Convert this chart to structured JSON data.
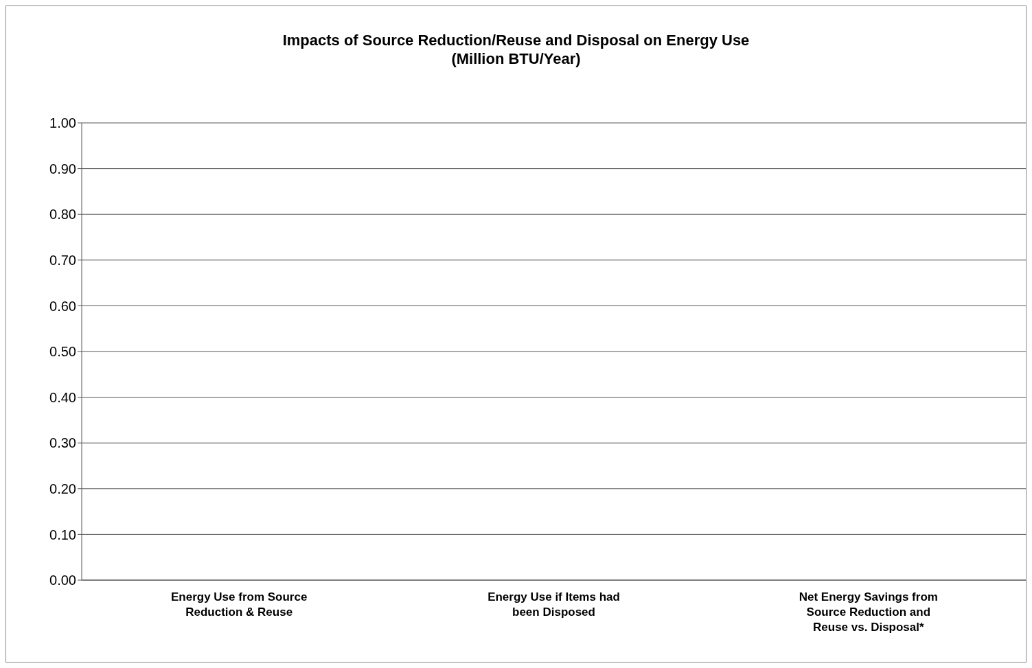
{
  "chart_data": {
    "type": "bar",
    "title": "Impacts of Source Reduction/Reuse and Disposal on Energy Use\n(Million BTU/Year)",
    "categories": [
      "Energy Use from Source Reduction & Reuse",
      "Energy Use if Items had been Disposed",
      "Net Energy Savings from Source Reduction and Reuse vs. Disposal*"
    ],
    "values": [
      0,
      0,
      0
    ],
    "ylim": [
      0,
      1
    ],
    "yticks": [
      {
        "value": 0,
        "label": "0.00"
      },
      {
        "value": 0.1,
        "label": "0.10"
      },
      {
        "value": 0.2,
        "label": "0.20"
      },
      {
        "value": 0.3,
        "label": "0.30"
      },
      {
        "value": 0.4,
        "label": "0.40"
      },
      {
        "value": 0.5,
        "label": "0.50"
      },
      {
        "value": 0.6,
        "label": "0.60"
      },
      {
        "value": 0.7,
        "label": "0.70"
      },
      {
        "value": 0.8,
        "label": "0.80"
      },
      {
        "value": 0.9,
        "label": "0.90"
      },
      {
        "value": 1,
        "label": "1.00"
      }
    ],
    "grid": "y",
    "legend": false
  }
}
